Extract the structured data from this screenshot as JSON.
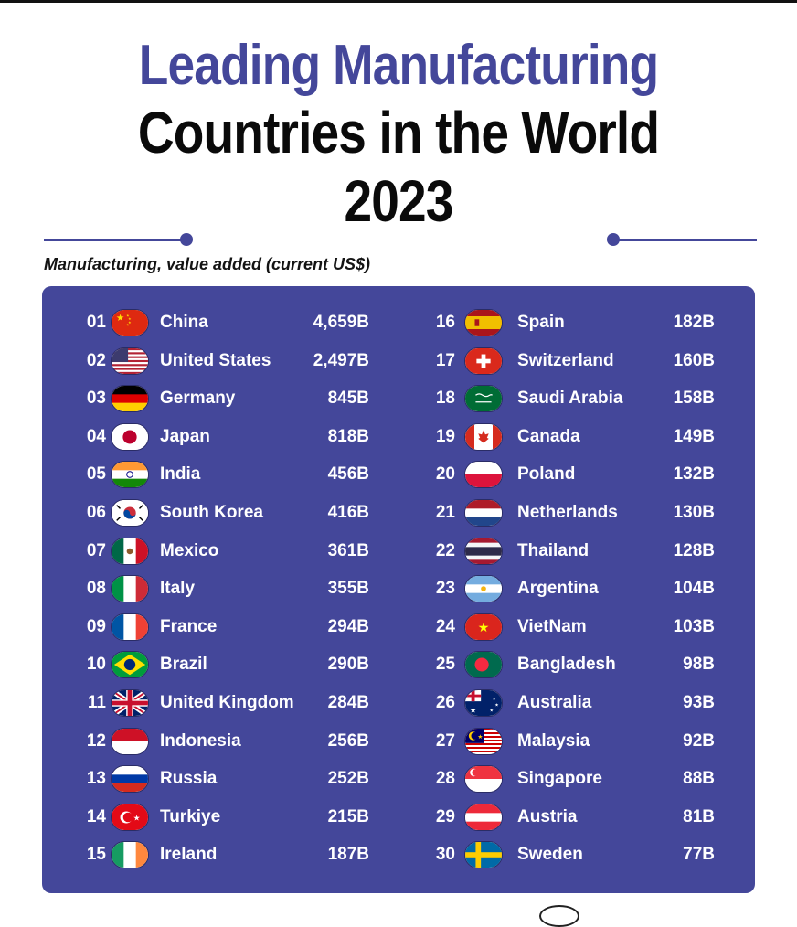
{
  "header": {
    "title_line1": "Leading Manufacturing",
    "title_line2": "Countries in the World",
    "title_line3": "2023",
    "subtitle": "Manufacturing, value added (current US$)"
  },
  "colors": {
    "accent": "#44479a",
    "panel": "#44479a",
    "text_on_panel": "#ffffff"
  },
  "chart_data": {
    "type": "table",
    "title": "Leading Manufacturing Countries in the World 2023",
    "subtitle": "Manufacturing, value added (current US$)",
    "unit": "B",
    "columns": [
      [
        {
          "rank": "01",
          "country": "China",
          "value": "4,659B",
          "flag": "cn"
        },
        {
          "rank": "02",
          "country": "United States",
          "value": "2,497B",
          "flag": "us"
        },
        {
          "rank": "03",
          "country": "Germany",
          "value": "845B",
          "flag": "de"
        },
        {
          "rank": "04",
          "country": "Japan",
          "value": "818B",
          "flag": "jp"
        },
        {
          "rank": "05",
          "country": "India",
          "value": "456B",
          "flag": "in"
        },
        {
          "rank": "06",
          "country": "South Korea",
          "value": "416B",
          "flag": "kr"
        },
        {
          "rank": "07",
          "country": "Mexico",
          "value": "361B",
          "flag": "mx"
        },
        {
          "rank": "08",
          "country": "Italy",
          "value": "355B",
          "flag": "it"
        },
        {
          "rank": "09",
          "country": "France",
          "value": "294B",
          "flag": "fr"
        },
        {
          "rank": "10",
          "country": "Brazil",
          "value": "290B",
          "flag": "br"
        },
        {
          "rank": "11",
          "country": "United Kingdom",
          "value": "284B",
          "flag": "gb"
        },
        {
          "rank": "12",
          "country": "Indonesia",
          "value": "256B",
          "flag": "id"
        },
        {
          "rank": "13",
          "country": "Russia",
          "value": "252B",
          "flag": "ru"
        },
        {
          "rank": "14",
          "country": "Turkiye",
          "value": "215B",
          "flag": "tr"
        },
        {
          "rank": "15",
          "country": "Ireland",
          "value": "187B",
          "flag": "ie"
        }
      ],
      [
        {
          "rank": "16",
          "country": "Spain",
          "value": "182B",
          "flag": "es"
        },
        {
          "rank": "17",
          "country": "Switzerland",
          "value": "160B",
          "flag": "ch"
        },
        {
          "rank": "18",
          "country": "Saudi Arabia",
          "value": "158B",
          "flag": "sa"
        },
        {
          "rank": "19",
          "country": "Canada",
          "value": "149B",
          "flag": "ca"
        },
        {
          "rank": "20",
          "country": "Poland",
          "value": "132B",
          "flag": "pl"
        },
        {
          "rank": "21",
          "country": "Netherlands",
          "value": "130B",
          "flag": "nl"
        },
        {
          "rank": "22",
          "country": "Thailand",
          "value": "128B",
          "flag": "th"
        },
        {
          "rank": "23",
          "country": "Argentina",
          "value": "104B",
          "flag": "ar"
        },
        {
          "rank": "24",
          "country": "VietNam",
          "value": "103B",
          "flag": "vn"
        },
        {
          "rank": "25",
          "country": "Bangladesh",
          "value": "98B",
          "flag": "bd"
        },
        {
          "rank": "26",
          "country": "Australia",
          "value": "93B",
          "flag": "au"
        },
        {
          "rank": "27",
          "country": "Malaysia",
          "value": "92B",
          "flag": "my"
        },
        {
          "rank": "28",
          "country": "Singapore",
          "value": "88B",
          "flag": "sg"
        },
        {
          "rank": "29",
          "country": "Austria",
          "value": "81B",
          "flag": "at"
        },
        {
          "rank": "30",
          "country": "Sweden",
          "value": "77B",
          "flag": "se"
        }
      ]
    ]
  }
}
